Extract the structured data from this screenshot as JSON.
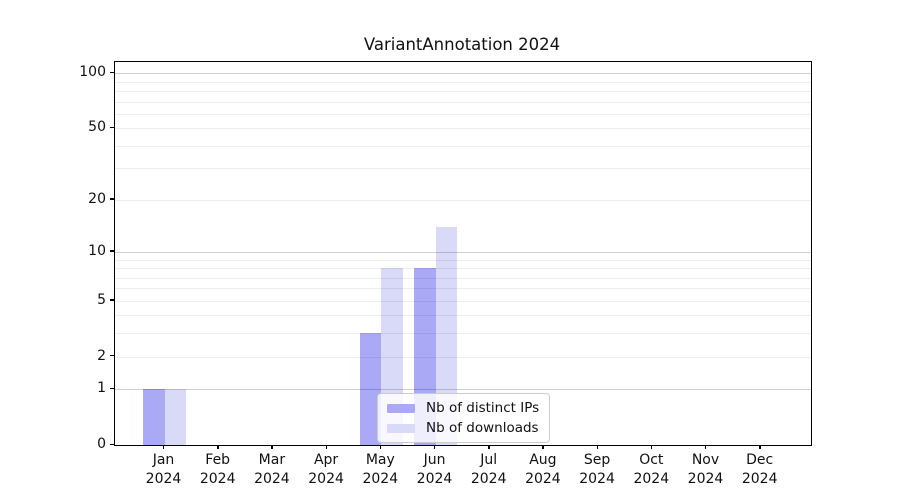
{
  "title": "VariantAnnotation 2024",
  "chart_data": {
    "type": "bar",
    "title": "VariantAnnotation 2024",
    "xlabel": "",
    "ylabel": "",
    "categories": [
      "Jan",
      "Feb",
      "Mar",
      "Apr",
      "May",
      "Jun",
      "Jul",
      "Aug",
      "Sep",
      "Oct",
      "Nov",
      "Dec"
    ],
    "x_tick_year": "2024",
    "series": [
      {
        "name": "Nb of distinct IPs",
        "color": "#a9a9f5",
        "values": [
          1,
          0,
          0,
          0,
          3,
          8,
          0,
          0,
          0,
          0,
          0,
          0
        ]
      },
      {
        "name": "Nb of downloads",
        "color": "#d9d9f8",
        "values": [
          1,
          0,
          0,
          0,
          8,
          14,
          0,
          0,
          0,
          0,
          0,
          0
        ]
      }
    ],
    "y_axis": {
      "scale": "log1p",
      "tick_values": [
        0,
        1,
        2,
        5,
        10,
        20,
        50,
        100
      ],
      "major_gridlines": [
        1,
        10,
        100
      ],
      "minor_gridlines": [
        2,
        3,
        4,
        5,
        6,
        7,
        8,
        9,
        20,
        30,
        40,
        50,
        60,
        70,
        80,
        90
      ],
      "range_max": 100
    },
    "grid": true,
    "legend": {
      "position": "inside-bottom-center",
      "entries": [
        "Nb of distinct IPs",
        "Nb of downloads"
      ]
    }
  },
  "colors": {
    "background": "#ffffff",
    "spine": "#000000",
    "text": "#111111",
    "grid_minor": "#ececec",
    "grid_major": "#cccccc",
    "bar_ips": "#a9a9f5",
    "bar_downloads": "#d9d9f8"
  }
}
